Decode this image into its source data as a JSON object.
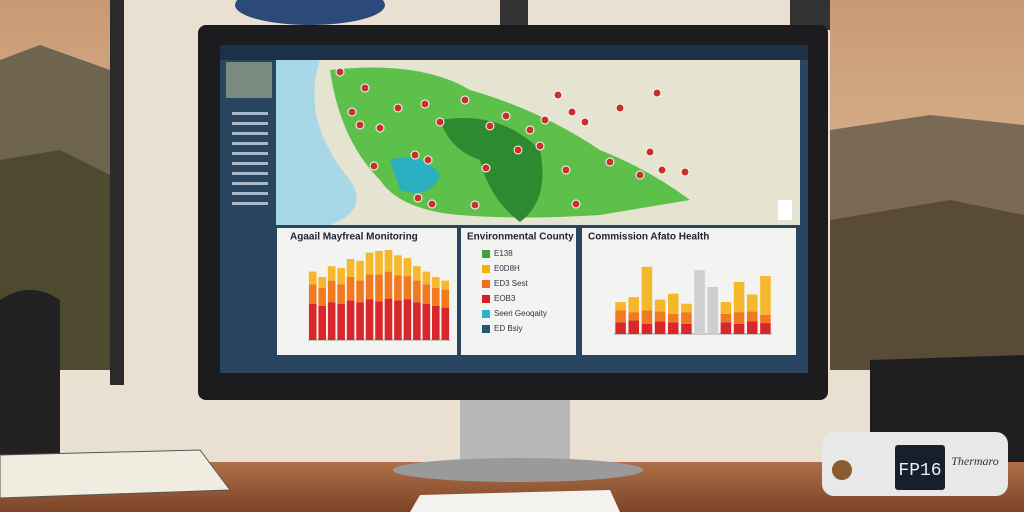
{
  "panels": [
    {
      "title": "Agaail Mayfreal Monitoring",
      "ylim": [
        0,
        100
      ],
      "series": [
        {
          "color": "#d8262a",
          "values": [
            40,
            38,
            42,
            40,
            44,
            42,
            45,
            43,
            46,
            44,
            45,
            42,
            40,
            38,
            36
          ]
        },
        {
          "color": "#f07a22",
          "values": [
            22,
            20,
            24,
            22,
            26,
            24,
            28,
            30,
            30,
            28,
            26,
            24,
            22,
            20,
            20
          ]
        },
        {
          "color": "#f5b82a",
          "values": [
            14,
            12,
            16,
            18,
            20,
            22,
            24,
            26,
            24,
            22,
            20,
            16,
            14,
            12,
            10
          ]
        }
      ]
    },
    {
      "title": "Environmental County",
      "legend": [
        {
          "color": "#3aa53a",
          "label": "E138"
        },
        {
          "color": "#f0b400",
          "label": "E0D8H"
        },
        {
          "color": "#f07020",
          "label": "ED3 Sest"
        },
        {
          "color": "#d82020",
          "label": "EOB3"
        },
        {
          "color": "#20b8c8",
          "label": "Seeri Geoqaity"
        },
        {
          "color": "#1a5a70",
          "label": "ED Bsiy"
        }
      ]
    },
    {
      "title": "Commission Afato Health",
      "ylim": [
        0,
        100
      ],
      "series": [
        {
          "color": "#d8262a",
          "values": [
            14,
            16,
            12,
            15,
            14,
            12,
            0,
            0,
            14,
            12,
            15,
            13
          ]
        },
        {
          "color": "#f07a22",
          "values": [
            14,
            10,
            16,
            12,
            10,
            14,
            0,
            0,
            10,
            14,
            12,
            10
          ]
        },
        {
          "color": "#f5b82a",
          "values": [
            10,
            18,
            52,
            14,
            24,
            10,
            0,
            0,
            14,
            36,
            20,
            46
          ]
        },
        {
          "color": "#cfcfcf",
          "values": [
            0,
            0,
            0,
            0,
            0,
            0,
            76,
            56,
            0,
            0,
            0,
            0
          ]
        }
      ]
    }
  ],
  "clock": {
    "display": "FP16",
    "brand": "Thermaro"
  }
}
